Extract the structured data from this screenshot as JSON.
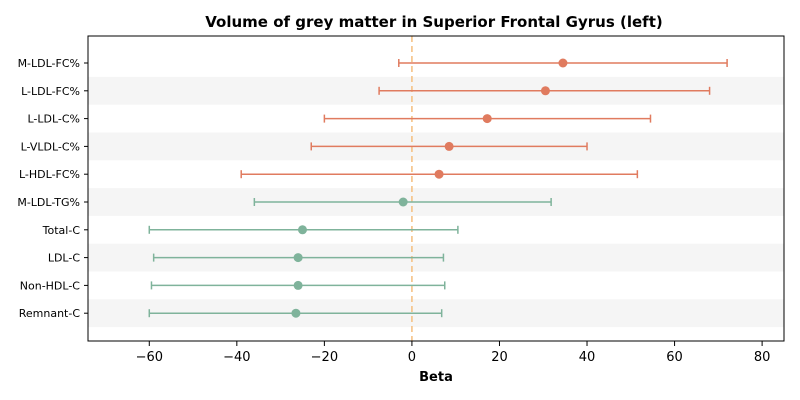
{
  "chart_data": {
    "type": "forest",
    "title": "Volume of grey matter in Superior Frontal Gyrus (left)",
    "xlabel": "Beta",
    "xlim": [
      -74,
      85
    ],
    "xticks": [
      -60,
      -40,
      -20,
      0,
      20,
      40,
      60,
      80
    ],
    "reference_line": 0,
    "row_shading": "alternating",
    "colors": {
      "positive": "#E07B5F",
      "negative": "#7FB39B",
      "reference_line": "#F5BE7E",
      "stripe": "#F5F5F5"
    },
    "categories": [
      "M-LDL-FC%",
      "L-LDL-FC%",
      "L-LDL-C%",
      "L-VLDL-C%",
      "L-HDL-FC%",
      "M-LDL-TG%",
      "Total-C",
      "LDL-C",
      "Non-HDL-C",
      "Remnant-C"
    ],
    "points": [
      {
        "label": "M-LDL-FC%",
        "beta": 34.5,
        "ci_low": -3.0,
        "ci_high": 72.0
      },
      {
        "label": "L-LDL-FC%",
        "beta": 30.5,
        "ci_low": -7.5,
        "ci_high": 68.0
      },
      {
        "label": "L-LDL-C%",
        "beta": 17.2,
        "ci_low": -20.0,
        "ci_high": 54.5
      },
      {
        "label": "L-VLDL-C%",
        "beta": 8.5,
        "ci_low": -23.0,
        "ci_high": 40.0
      },
      {
        "label": "L-HDL-FC%",
        "beta": 6.2,
        "ci_low": -39.0,
        "ci_high": 51.5
      },
      {
        "label": "M-LDL-TG%",
        "beta": -2.0,
        "ci_low": -36.0,
        "ci_high": 31.8
      },
      {
        "label": "Total-C",
        "beta": -25.0,
        "ci_low": -60.0,
        "ci_high": 10.5
      },
      {
        "label": "LDL-C",
        "beta": -26.0,
        "ci_low": -59.0,
        "ci_high": 7.2
      },
      {
        "label": "Non-HDL-C",
        "beta": -26.0,
        "ci_low": -59.5,
        "ci_high": 7.5
      },
      {
        "label": "Remnant-C",
        "beta": -26.5,
        "ci_low": -60.0,
        "ci_high": 6.8
      }
    ]
  }
}
